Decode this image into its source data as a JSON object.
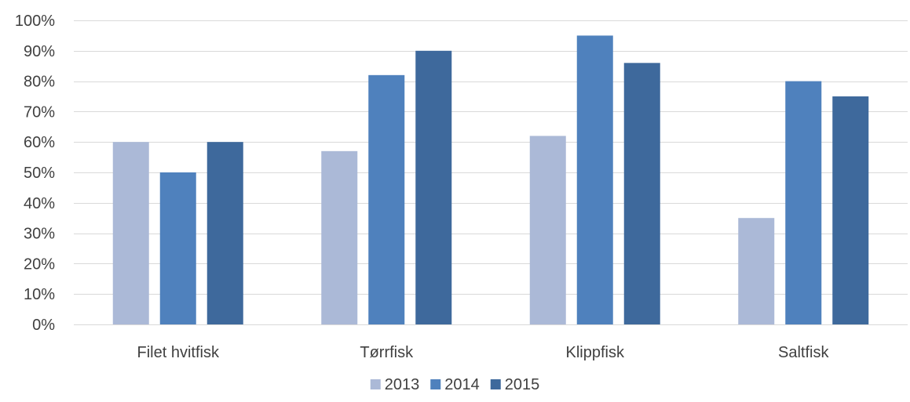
{
  "chart_data": {
    "type": "bar",
    "title": "",
    "xlabel": "",
    "ylabel": "",
    "categories": [
      "Filet hvitfisk",
      "Tørrfisk",
      "Klippfisk",
      "Saltfisk"
    ],
    "series": [
      {
        "name": "2013",
        "color": "#abb9d7",
        "values": [
          60,
          57,
          62,
          35
        ]
      },
      {
        "name": "2014",
        "color": "#4f81bd",
        "values": [
          50,
          82,
          95,
          80
        ]
      },
      {
        "name": "2015",
        "color": "#3e699c",
        "values": [
          60,
          90,
          86,
          75
        ]
      }
    ],
    "ylim": [
      0,
      100
    ],
    "yticks": [
      0,
      10,
      20,
      30,
      40,
      50,
      60,
      70,
      80,
      90,
      100
    ],
    "ytick_labels": [
      "0%",
      "10%",
      "20%",
      "30%",
      "40%",
      "50%",
      "60%",
      "70%",
      "80%",
      "90%",
      "100%"
    ],
    "grid": true,
    "legend_position": "bottom",
    "gridline_color": "#d9d9d9",
    "text_color": "#404040"
  }
}
